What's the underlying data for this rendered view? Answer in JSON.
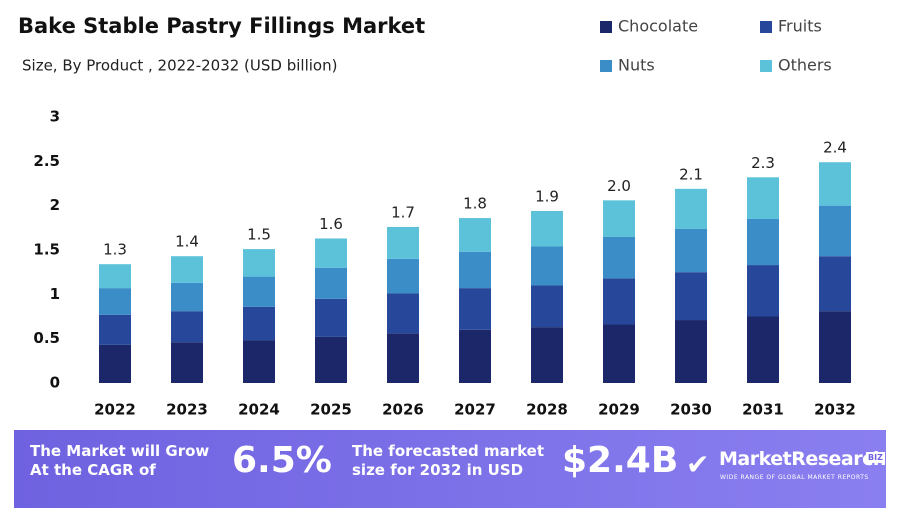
{
  "chart_data": {
    "type": "stacked_bar",
    "title": "Bake Stable Pastry Fillings Market",
    "subtitle": "Size, By Product , 2022-2032  (USD billion)",
    "categories": [
      "2022",
      "2023",
      "2024",
      "2025",
      "2026",
      "2027",
      "2028",
      "2029",
      "2030",
      "2031",
      "2032"
    ],
    "series": [
      {
        "name": "Chocolate",
        "color": "#1b2768",
        "values": [
          0.43,
          0.46,
          0.48,
          0.52,
          0.56,
          0.6,
          0.63,
          0.66,
          0.71,
          0.75,
          0.81
        ]
      },
      {
        "name": "Fruits",
        "color": "#27489a",
        "values": [
          0.34,
          0.35,
          0.38,
          0.43,
          0.45,
          0.47,
          0.47,
          0.52,
          0.54,
          0.58,
          0.62
        ]
      },
      {
        "name": "Nuts",
        "color": "#3a8dc6",
        "values": [
          0.3,
          0.32,
          0.34,
          0.35,
          0.39,
          0.41,
          0.44,
          0.47,
          0.49,
          0.52,
          0.57
        ]
      },
      {
        "name": "Others",
        "color": "#5bc2da",
        "values": [
          0.27,
          0.3,
          0.31,
          0.33,
          0.36,
          0.38,
          0.4,
          0.41,
          0.45,
          0.47,
          0.49
        ]
      }
    ],
    "totals": {
      "values": [
        1.3,
        1.4,
        1.5,
        1.6,
        1.7,
        1.8,
        1.9,
        2.0,
        2.1,
        2.3,
        2.4
      ],
      "value_labels": [
        "1.3",
        "1.4",
        "1.5",
        "1.6",
        "1.7",
        "1.8",
        "1.9",
        "2.0",
        "2.1",
        "2.3",
        "2.4"
      ]
    },
    "ylim": [
      0,
      3
    ],
    "yticks": [
      0,
      0.5,
      1,
      1.5,
      2,
      2.5,
      3
    ],
    "grid": false
  },
  "banner": {
    "grow_text": "The Market will Grow At the CAGR of",
    "cagr": "6.5%",
    "forecast_text": "The forecasted market size for 2032 in USD",
    "forecast_value": "$2.4B",
    "brand": "MarketResearch",
    "brand_badge": "BIZ",
    "tagline": "WIDE RANGE OF GLOBAL MARKET REPORTS"
  }
}
